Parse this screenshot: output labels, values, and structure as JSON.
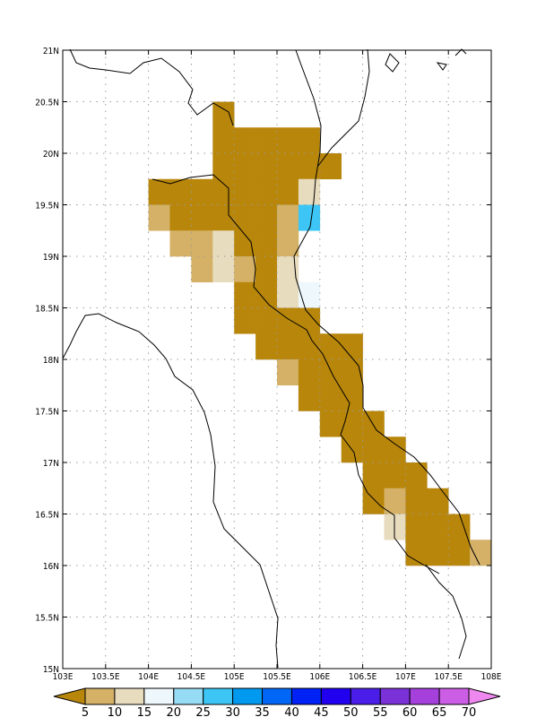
{
  "map": {
    "lon_range": [
      103,
      108
    ],
    "lat_range": [
      15,
      21
    ],
    "grid_step": 0.25,
    "grid_lines": "dotted"
  },
  "axis": {
    "x_ticks": [
      "103E",
      "103.5E",
      "104E",
      "104.5E",
      "105E",
      "105.5E",
      "106E",
      "106.5E",
      "107E",
      "107.5E",
      "108E"
    ],
    "y_ticks": [
      "15N",
      "15.5N",
      "16N",
      "16.5N",
      "17N",
      "17.5N",
      "18N",
      "18.5N",
      "19N",
      "19.5N",
      "20N",
      "20.5N",
      "21N"
    ]
  },
  "colorbar": {
    "labels": [
      "5",
      "10",
      "15",
      "20",
      "25",
      "30",
      "35",
      "40",
      "45",
      "50",
      "55",
      "60",
      "65",
      "70"
    ],
    "colors": [
      "#b8860b",
      "#d4b166",
      "#e8dcbf",
      "#eef8fc",
      "#97dcf5",
      "#3dc6f5",
      "#0099f0",
      "#0066f5",
      "#0022f5",
      "#2000ee",
      "#4a1ee8",
      "#7a32d8",
      "#a640dc",
      "#cc5ee6",
      "#ee88ee"
    ]
  },
  "chart_data": {
    "type": "heatmap",
    "cell_size_deg": 0.25,
    "cells": [
      {
        "lon": 104.75,
        "lat": 20.25,
        "bin": 0
      },
      {
        "lon": 104.75,
        "lat": 20.0,
        "bin": 0
      },
      {
        "lon": 105.0,
        "lat": 20.0,
        "bin": 0
      },
      {
        "lon": 105.25,
        "lat": 20.0,
        "bin": 0
      },
      {
        "lon": 105.5,
        "lat": 20.0,
        "bin": 0
      },
      {
        "lon": 105.75,
        "lat": 20.0,
        "bin": 0
      },
      {
        "lon": 104.75,
        "lat": 19.75,
        "bin": 0
      },
      {
        "lon": 105.0,
        "lat": 19.75,
        "bin": 0
      },
      {
        "lon": 105.25,
        "lat": 19.75,
        "bin": 0
      },
      {
        "lon": 105.5,
        "lat": 19.75,
        "bin": 0
      },
      {
        "lon": 105.75,
        "lat": 19.75,
        "bin": 0
      },
      {
        "lon": 106.0,
        "lat": 19.75,
        "bin": 0
      },
      {
        "lon": 104.0,
        "lat": 19.5,
        "bin": 0
      },
      {
        "lon": 104.25,
        "lat": 19.5,
        "bin": 0
      },
      {
        "lon": 104.5,
        "lat": 19.5,
        "bin": 0
      },
      {
        "lon": 104.75,
        "lat": 19.5,
        "bin": 0
      },
      {
        "lon": 105.0,
        "lat": 19.5,
        "bin": 0
      },
      {
        "lon": 105.25,
        "lat": 19.5,
        "bin": 0
      },
      {
        "lon": 105.5,
        "lat": 19.5,
        "bin": 0
      },
      {
        "lon": 105.75,
        "lat": 19.5,
        "bin": 2
      },
      {
        "lon": 104.0,
        "lat": 19.25,
        "bin": 1
      },
      {
        "lon": 104.25,
        "lat": 19.25,
        "bin": 0
      },
      {
        "lon": 104.5,
        "lat": 19.25,
        "bin": 0
      },
      {
        "lon": 104.75,
        "lat": 19.25,
        "bin": 0
      },
      {
        "lon": 105.0,
        "lat": 19.25,
        "bin": 0
      },
      {
        "lon": 105.25,
        "lat": 19.25,
        "bin": 0
      },
      {
        "lon": 105.5,
        "lat": 19.25,
        "bin": 1
      },
      {
        "lon": 105.75,
        "lat": 19.25,
        "bin": 5
      },
      {
        "lon": 104.25,
        "lat": 19.0,
        "bin": 1
      },
      {
        "lon": 104.5,
        "lat": 19.0,
        "bin": 1
      },
      {
        "lon": 104.75,
        "lat": 19.0,
        "bin": 2
      },
      {
        "lon": 105.0,
        "lat": 19.0,
        "bin": 0
      },
      {
        "lon": 105.25,
        "lat": 19.0,
        "bin": 0
      },
      {
        "lon": 105.5,
        "lat": 19.0,
        "bin": 1
      },
      {
        "lon": 104.5,
        "lat": 18.75,
        "bin": 1
      },
      {
        "lon": 104.75,
        "lat": 18.75,
        "bin": 2
      },
      {
        "lon": 105.0,
        "lat": 18.75,
        "bin": 1
      },
      {
        "lon": 105.25,
        "lat": 18.75,
        "bin": 0
      },
      {
        "lon": 105.5,
        "lat": 18.75,
        "bin": 2
      },
      {
        "lon": 105.0,
        "lat": 18.5,
        "bin": 0
      },
      {
        "lon": 105.25,
        "lat": 18.5,
        "bin": 0
      },
      {
        "lon": 105.5,
        "lat": 18.5,
        "bin": 2
      },
      {
        "lon": 105.75,
        "lat": 18.5,
        "bin": 3
      },
      {
        "lon": 105.0,
        "lat": 18.25,
        "bin": 0
      },
      {
        "lon": 105.25,
        "lat": 18.25,
        "bin": 0
      },
      {
        "lon": 105.5,
        "lat": 18.25,
        "bin": 0
      },
      {
        "lon": 105.75,
        "lat": 18.25,
        "bin": 0
      },
      {
        "lon": 105.25,
        "lat": 18.0,
        "bin": 0
      },
      {
        "lon": 105.5,
        "lat": 18.0,
        "bin": 0
      },
      {
        "lon": 105.75,
        "lat": 18.0,
        "bin": 0
      },
      {
        "lon": 106.0,
        "lat": 18.0,
        "bin": 0
      },
      {
        "lon": 106.25,
        "lat": 18.0,
        "bin": 0
      },
      {
        "lon": 105.5,
        "lat": 17.75,
        "bin": 1
      },
      {
        "lon": 105.75,
        "lat": 17.75,
        "bin": 0
      },
      {
        "lon": 106.0,
        "lat": 17.75,
        "bin": 0
      },
      {
        "lon": 106.25,
        "lat": 17.75,
        "bin": 0
      },
      {
        "lon": 105.75,
        "lat": 17.5,
        "bin": 0
      },
      {
        "lon": 106.0,
        "lat": 17.5,
        "bin": 0
      },
      {
        "lon": 106.25,
        "lat": 17.5,
        "bin": 0
      },
      {
        "lon": 106.0,
        "lat": 17.25,
        "bin": 0
      },
      {
        "lon": 106.25,
        "lat": 17.25,
        "bin": 0
      },
      {
        "lon": 106.5,
        "lat": 17.25,
        "bin": 0
      },
      {
        "lon": 106.25,
        "lat": 17.0,
        "bin": 0
      },
      {
        "lon": 106.5,
        "lat": 17.0,
        "bin": 0
      },
      {
        "lon": 106.75,
        "lat": 17.0,
        "bin": 0
      },
      {
        "lon": 106.5,
        "lat": 16.75,
        "bin": 0
      },
      {
        "lon": 106.75,
        "lat": 16.75,
        "bin": 0
      },
      {
        "lon": 107.0,
        "lat": 16.75,
        "bin": 0
      },
      {
        "lon": 106.5,
        "lat": 16.5,
        "bin": 0
      },
      {
        "lon": 106.75,
        "lat": 16.5,
        "bin": 1
      },
      {
        "lon": 107.0,
        "lat": 16.5,
        "bin": 0
      },
      {
        "lon": 107.25,
        "lat": 16.5,
        "bin": 0
      },
      {
        "lon": 106.75,
        "lat": 16.25,
        "bin": 2
      },
      {
        "lon": 107.0,
        "lat": 16.25,
        "bin": 0
      },
      {
        "lon": 107.25,
        "lat": 16.25,
        "bin": 0
      },
      {
        "lon": 107.5,
        "lat": 16.25,
        "bin": 0
      },
      {
        "lon": 107.0,
        "lat": 16.0,
        "bin": 0
      },
      {
        "lon": 107.25,
        "lat": 16.0,
        "bin": 0
      },
      {
        "lon": 107.5,
        "lat": 16.0,
        "bin": 0
      },
      {
        "lon": 107.75,
        "lat": 16.0,
        "bin": 1
      }
    ]
  }
}
